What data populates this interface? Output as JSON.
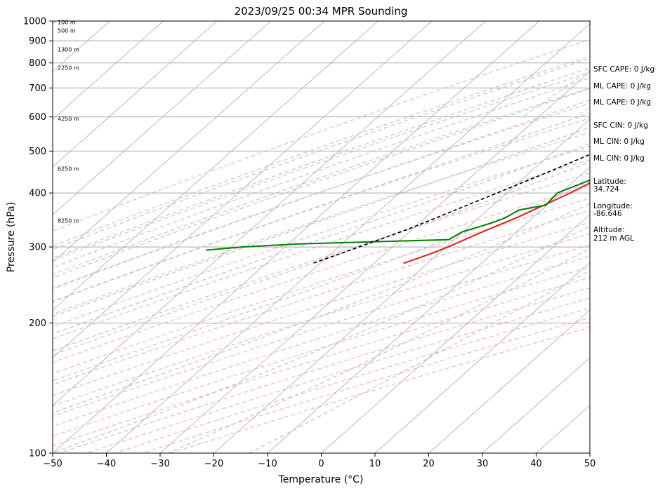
{
  "chart_data": {
    "type": "line",
    "title": "2023/09/25 00:34 MPR Sounding",
    "xlabel": "Temperature (°C)",
    "ylabel": "Pressure (hPa)",
    "xlim": [
      -50,
      50
    ],
    "ylim": [
      1000,
      100
    ],
    "y_scale": "log",
    "skew": true,
    "x_ticks": [
      "−50",
      "−40",
      "−30",
      "−20",
      "−10",
      "0",
      "10",
      "20",
      "30",
      "40",
      "50"
    ],
    "y_ticks": [
      {
        "p": 1000,
        "label": "1000"
      },
      {
        "p": 900,
        "label": "900"
      },
      {
        "p": 800,
        "label": "800"
      },
      {
        "p": 700,
        "label": "700"
      },
      {
        "p": 600,
        "label": "600"
      },
      {
        "p": 500,
        "label": "500"
      },
      {
        "p": 400,
        "label": "400"
      },
      {
        "p": 300,
        "label": "300"
      },
      {
        "p": 200,
        "label": "200"
      },
      {
        "p": 100,
        "label": "100"
      }
    ],
    "grid": true,
    "series": [
      {
        "key": "temperature",
        "color": "#e31a1c",
        "style": "solid",
        "points": [
          [
            1000,
            24.6
          ],
          [
            985,
            26.2
          ],
          [
            970,
            25.2
          ],
          [
            950,
            22.8
          ],
          [
            925,
            21.0
          ],
          [
            900,
            20.1
          ],
          [
            875,
            19.1
          ],
          [
            850,
            18.4
          ],
          [
            840,
            18.0
          ],
          [
            825,
            17.8
          ],
          [
            800,
            17.2
          ],
          [
            775,
            17.0
          ],
          [
            750,
            16.4
          ],
          [
            725,
            15.2
          ],
          [
            700,
            13.6
          ],
          [
            675,
            11.2
          ],
          [
            650,
            8.9
          ],
          [
            625,
            6.7
          ],
          [
            600,
            5.2
          ],
          [
            550,
            2.2
          ],
          [
            500,
            -1.0
          ],
          [
            450,
            -4.6
          ],
          [
            400,
            -8.2
          ],
          [
            375,
            -10.5
          ],
          [
            350,
            -13.1
          ],
          [
            325,
            -16.4
          ],
          [
            300,
            -19.6
          ],
          [
            290,
            -21.3
          ],
          [
            275,
            -24.5
          ]
        ]
      },
      {
        "key": "dewpoint",
        "color": "#008000",
        "style": "solid",
        "points": [
          [
            1000,
            10.4
          ],
          [
            990,
            7.0
          ],
          [
            975,
            5.3
          ],
          [
            950,
            3.0
          ],
          [
            925,
            2.0
          ],
          [
            900,
            1.1
          ],
          [
            875,
            -2.7
          ],
          [
            850,
            -6.1
          ],
          [
            825,
            -8.2
          ],
          [
            800,
            -9.3
          ],
          [
            775,
            -9.0
          ],
          [
            750,
            -9.6
          ],
          [
            725,
            -4.4
          ],
          [
            700,
            0.6
          ],
          [
            675,
            3.9
          ],
          [
            660,
            6.1
          ],
          [
            640,
            1.8
          ],
          [
            625,
            1.2
          ],
          [
            600,
            1.8
          ],
          [
            570,
            1.6
          ],
          [
            550,
            4.4
          ],
          [
            500,
            0.2
          ],
          [
            450,
            -4.8
          ],
          [
            425,
            -7.6
          ],
          [
            400,
            -10.6
          ],
          [
            375,
            -10.2
          ],
          [
            365,
            -14.2
          ],
          [
            350,
            -15.1
          ],
          [
            340,
            -16.7
          ],
          [
            325,
            -20.2
          ],
          [
            312,
            -21.0
          ],
          [
            305,
            -48.0
          ],
          [
            300,
            -58.0
          ],
          [
            295,
            -64.0
          ]
        ]
      },
      {
        "key": "parcel",
        "color": "#000000",
        "style": "dashed",
        "points": [
          [
            1000,
            24.6
          ],
          [
            950,
            20.8
          ],
          [
            900,
            17.0
          ],
          [
            850,
            13.1
          ],
          [
            825,
            11.1
          ],
          [
            800,
            10.2
          ],
          [
            750,
            6.9
          ],
          [
            700,
            3.3
          ],
          [
            650,
            -0.3
          ],
          [
            600,
            -3.9
          ],
          [
            550,
            -7.7
          ],
          [
            500,
            -11.8
          ],
          [
            450,
            -16.4
          ],
          [
            400,
            -21.8
          ],
          [
            350,
            -28.0
          ],
          [
            330,
            -30.8
          ],
          [
            300,
            -36.2
          ],
          [
            285,
            -39.2
          ],
          [
            275,
            -41.4
          ]
        ]
      }
    ],
    "altitude_labels": [
      {
        "p": 995,
        "label": "100 m"
      },
      {
        "p": 950,
        "label": "500 m"
      },
      {
        "p": 860,
        "label": "1300 m"
      },
      {
        "p": 780,
        "label": "2250 m"
      },
      {
        "p": 595,
        "label": "4250 m"
      },
      {
        "p": 455,
        "label": "6250 m"
      },
      {
        "p": 345,
        "label": "8250 m"
      }
    ]
  },
  "side_panel": [
    {
      "text": "SFC CAPE: 0 J/kg"
    },
    {
      "text": "ML CAPE: 0 J/kg"
    },
    {
      "text": "ML CAPE: 0 J/kg"
    },
    {
      "text": "SFC CIN: 0 J/kg"
    },
    {
      "text": "ML CIN: 0 J/kg"
    },
    {
      "text": "ML CIN: 0 J/kg"
    },
    {
      "text": "Latitude:"
    },
    {
      "text": "34.724"
    },
    {
      "text": "Longitude:"
    },
    {
      "text": "-86.646"
    },
    {
      "text": "Altitude:"
    },
    {
      "text": "212 m AGL"
    }
  ]
}
